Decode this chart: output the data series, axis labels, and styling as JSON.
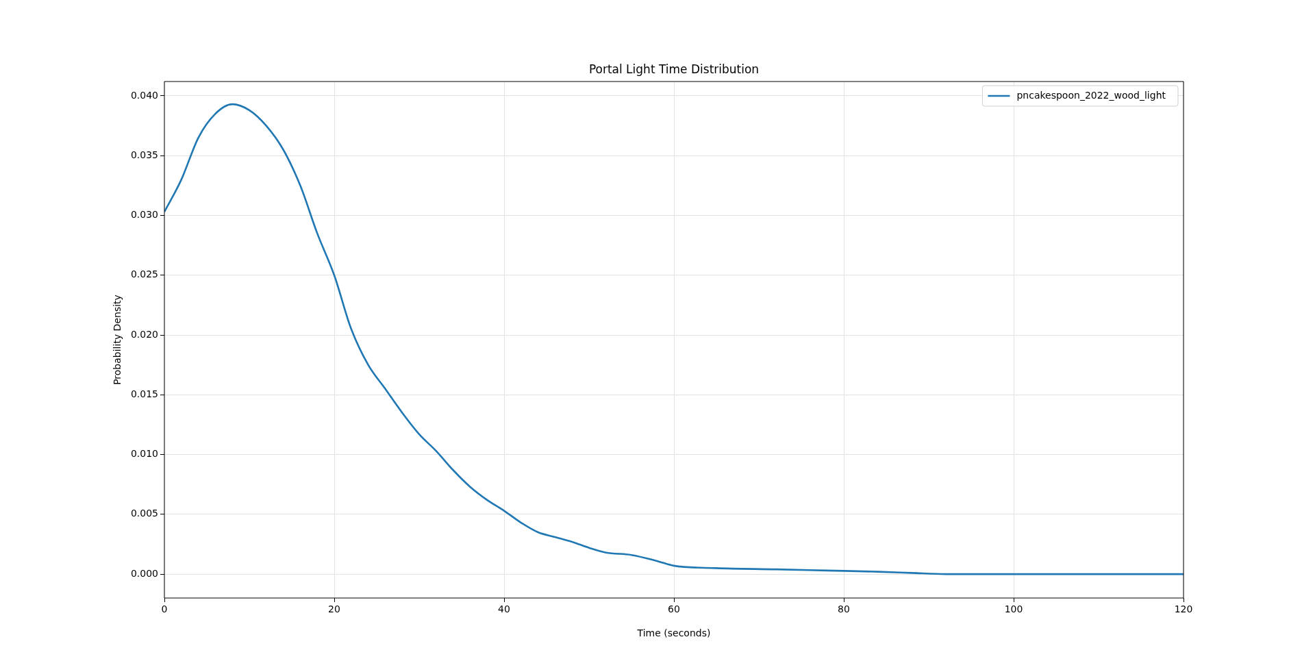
{
  "chart_data": {
    "type": "line",
    "title": "Portal Light Time Distribution",
    "xlabel": "Time (seconds)",
    "ylabel": "Probability Density",
    "xlim": [
      0,
      120
    ],
    "xticks": [
      0,
      20,
      40,
      60,
      80,
      100,
      120
    ],
    "ylim": [
      -0.002,
      0.0412
    ],
    "yticks": [
      {
        "value": 0,
        "label": "0.000"
      },
      {
        "value": 0.005,
        "label": "0.005"
      },
      {
        "value": 0.01,
        "label": "0.010"
      },
      {
        "value": 0.015,
        "label": "0.015"
      },
      {
        "value": 0.02,
        "label": "0.020"
      },
      {
        "value": 0.025,
        "label": "0.025"
      },
      {
        "value": 0.03,
        "label": "0.030"
      },
      {
        "value": 0.035,
        "label": "0.035"
      },
      {
        "value": 0.04,
        "label": "0.040"
      }
    ],
    "grid": true,
    "legend": "top right",
    "marker": "none",
    "line_style": "solid",
    "series": [
      {
        "name": "pncakespoon_2022_wood_light",
        "color": "#1f77b4",
        "x": [
          0,
          2,
          4,
          6,
          8,
          10,
          12,
          14,
          16,
          18,
          20,
          22,
          24,
          26,
          28,
          30,
          32,
          34,
          36,
          38,
          40,
          42,
          44,
          46,
          48,
          50,
          52,
          55,
          58,
          60,
          65,
          72,
          78,
          84,
          88,
          92,
          100,
          110,
          120
        ],
        "values": [
          0.0303,
          0.033,
          0.0365,
          0.0385,
          0.0393,
          0.0388,
          0.0375,
          0.0355,
          0.0325,
          0.0285,
          0.025,
          0.0205,
          0.0175,
          0.0155,
          0.0135,
          0.0117,
          0.0103,
          0.0087,
          0.0073,
          0.0062,
          0.0053,
          0.0043,
          0.0035,
          0.0031,
          0.0027,
          0.0022,
          0.0018,
          0.0016,
          0.0011,
          0.0007,
          0.0005,
          0.0004,
          0.0003,
          0.0002,
          0.0001,
          0,
          0,
          0,
          0
        ]
      }
    ]
  }
}
